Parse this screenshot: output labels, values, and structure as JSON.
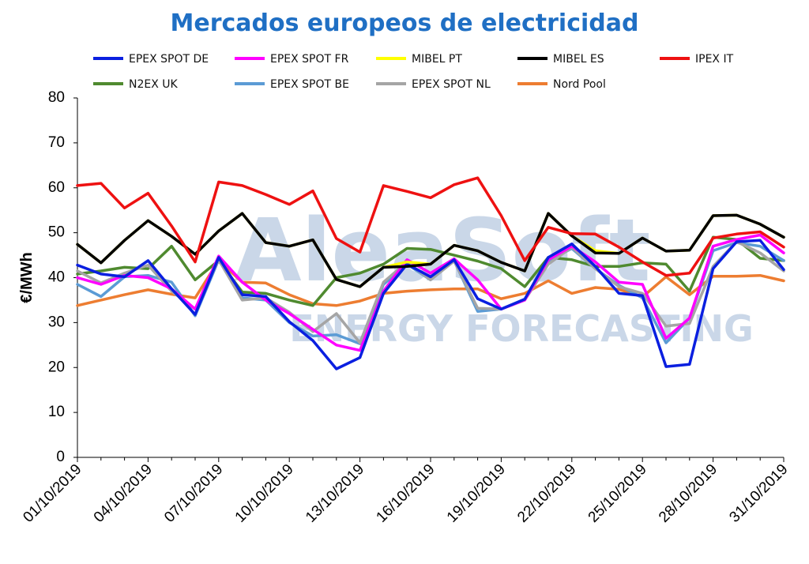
{
  "chart_data": {
    "type": "line",
    "title": "Mercados europeos de electricidad",
    "ylabel": "€/MWh",
    "xlabel": "",
    "ylim": [
      0,
      80
    ],
    "yticks": [
      0,
      10,
      20,
      30,
      40,
      50,
      60,
      70,
      80
    ],
    "grid": false,
    "legend": "top",
    "watermark": [
      "AleaSoft",
      "ENERGY FORECASTING"
    ],
    "x": [
      "01/10/2019",
      "02/10/2019",
      "03/10/2019",
      "04/10/2019",
      "05/10/2019",
      "06/10/2019",
      "07/10/2019",
      "08/10/2019",
      "09/10/2019",
      "10/10/2019",
      "11/10/2019",
      "12/10/2019",
      "13/10/2019",
      "14/10/2019",
      "15/10/2019",
      "16/10/2019",
      "17/10/2019",
      "18/10/2019",
      "19/10/2019",
      "20/10/2019",
      "21/10/2019",
      "22/10/2019",
      "23/10/2019",
      "24/10/2019",
      "25/10/2019",
      "26/10/2019",
      "27/10/2019",
      "28/10/2019",
      "29/10/2019",
      "30/10/2019",
      "31/10/2019"
    ],
    "xtick_labels": [
      "01/10/2019",
      "04/10/2019",
      "07/10/2019",
      "10/10/2019",
      "13/10/2019",
      "16/10/2019",
      "19/10/2019",
      "22/10/2019",
      "25/10/2019",
      "28/10/2019",
      "31/10/2019"
    ],
    "series": [
      {
        "name": "EPEX SPOT DE",
        "color": "#0a1fe0",
        "values": [
          42.8,
          40.8,
          40.2,
          43.8,
          37.5,
          31.8,
          44.5,
          36.2,
          35.8,
          30.2,
          26.0,
          19.7,
          22.2,
          36.5,
          43.0,
          40.2,
          44.0,
          35.3,
          33.0,
          35.2,
          44.5,
          47.5,
          42.5,
          36.5,
          36.0,
          20.2,
          20.7,
          42.0,
          48.0,
          48.3,
          41.8
        ]
      },
      {
        "name": "EPEX SPOT FR",
        "color": "#ff00ff",
        "values": [
          40.0,
          38.5,
          40.5,
          40.0,
          37.5,
          33.0,
          44.8,
          39.0,
          35.0,
          32.0,
          28.5,
          25.0,
          23.8,
          37.0,
          44.0,
          41.0,
          44.2,
          39.5,
          33.0,
          35.0,
          44.0,
          47.0,
          43.5,
          39.0,
          38.5,
          26.5,
          31.0,
          47.0,
          48.5,
          49.5,
          45.5
        ]
      },
      {
        "name": "MIBEL PT",
        "color": "#ffff00",
        "values": [
          47.4,
          43.3,
          48.3,
          52.7,
          49.2,
          45.2,
          50.4,
          54.3,
          47.8,
          47.0,
          48.4,
          39.6,
          38.0,
          42.3,
          43.5,
          43.0,
          47.2,
          46.0,
          43.4,
          41.5,
          54.3,
          49.3,
          46.0,
          45.4,
          48.8,
          45.9,
          46.1,
          53.8,
          53.9,
          51.9,
          49.0
        ]
      },
      {
        "name": "MIBEL ES",
        "color": "#000000",
        "values": [
          47.4,
          43.3,
          48.3,
          52.7,
          49.2,
          45.2,
          50.4,
          54.3,
          47.8,
          47.0,
          48.4,
          39.6,
          38.0,
          42.3,
          42.5,
          43.0,
          47.2,
          46.0,
          43.4,
          41.5,
          54.3,
          49.3,
          45.5,
          45.4,
          48.8,
          45.9,
          46.1,
          53.8,
          53.9,
          51.9,
          49.0
        ]
      },
      {
        "name": "IPEX IT",
        "color": "#ee1111",
        "values": [
          60.5,
          61.0,
          55.5,
          58.8,
          51.5,
          43.5,
          61.3,
          60.5,
          58.5,
          56.3,
          59.3,
          48.7,
          45.7,
          60.5,
          59.2,
          57.8,
          60.7,
          62.2,
          53.8,
          43.8,
          51.2,
          49.8,
          49.7,
          46.8,
          43.5,
          40.5,
          41.0,
          48.8,
          49.7,
          50.2,
          46.8
        ]
      },
      {
        "name": "N2EX UK",
        "color": "#4f8a2f",
        "values": [
          40.8,
          41.5,
          42.3,
          42.0,
          47.0,
          39.5,
          43.8,
          36.8,
          36.5,
          35.0,
          33.8,
          40.0,
          41.0,
          43.0,
          46.5,
          46.3,
          45.0,
          43.7,
          42.0,
          38.0,
          44.5,
          44.0,
          42.5,
          42.5,
          43.3,
          43.0,
          37.0,
          49.0,
          48.5,
          44.3,
          43.8
        ]
      },
      {
        "name": "EPEX SPOT BE",
        "color": "#5b9bd5",
        "values": [
          38.5,
          35.8,
          40.2,
          40.5,
          39.0,
          31.5,
          44.0,
          35.5,
          35.0,
          30.0,
          27.0,
          27.3,
          25.3,
          38.5,
          43.0,
          39.5,
          43.8,
          32.5,
          33.0,
          35.2,
          43.7,
          46.5,
          42.0,
          38.3,
          35.5,
          25.5,
          31.0,
          46.0,
          47.8,
          47.0,
          43.8
        ]
      },
      {
        "name": "EPEX SPOT NL",
        "color": "#a5a5a5",
        "values": [
          41.5,
          38.8,
          41.0,
          42.8,
          37.0,
          33.0,
          44.0,
          35.0,
          35.5,
          32.3,
          28.0,
          32.0,
          25.5,
          39.0,
          43.5,
          39.5,
          43.7,
          33.2,
          33.0,
          35.0,
          43.0,
          46.8,
          42.0,
          38.0,
          36.5,
          29.2,
          29.8,
          42.5,
          48.0,
          45.5,
          41.5
        ]
      },
      {
        "name": "Nord Pool",
        "color": "#ed7d31",
        "values": [
          33.8,
          35.0,
          36.2,
          37.3,
          36.3,
          35.5,
          43.8,
          39.0,
          38.8,
          36.2,
          34.2,
          33.8,
          34.8,
          36.5,
          37.0,
          37.3,
          37.5,
          37.5,
          35.3,
          36.5,
          39.3,
          36.5,
          37.8,
          37.4,
          35.7,
          40.2,
          36.2,
          40.3,
          40.3,
          40.5,
          39.3
        ]
      }
    ]
  }
}
